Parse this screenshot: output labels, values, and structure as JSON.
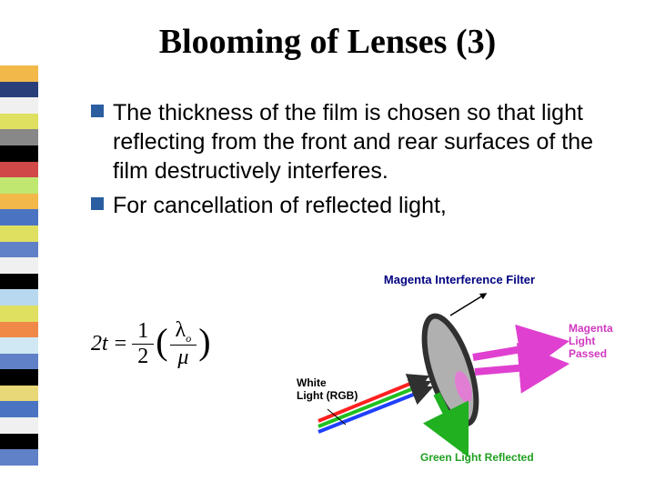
{
  "title": "Blooming of Lenses (3)",
  "bullets": [
    {
      "marker_color": "#2a5ea0",
      "text": "The thickness of the film is chosen so that light reflecting from the front and rear surfaces of the film destructively interferes."
    },
    {
      "marker_color": "#2a5ea0",
      "text": "For cancellation of reflected light,"
    }
  ],
  "equation": {
    "lhs": "2t",
    "fraction1": {
      "num": "1",
      "den": "2"
    },
    "fraction2": {
      "num": "λ",
      "num_sub": "o",
      "den": "μ"
    }
  },
  "diagram": {
    "title": "Magenta Interference Filter",
    "title_color": "#000080",
    "label_white": "White\nLight (RGB)",
    "label_magenta": "Magenta\nLight\nPassed",
    "label_green": "Green Light Reflected",
    "ellipse": {
      "fill": "#b0b0b0",
      "stroke": "#303030",
      "stroke_width": 6
    },
    "arrow_white_colors": [
      "#ff2020",
      "#20c020",
      "#2040ff"
    ],
    "arrow_magenta_color": "#e040d0",
    "arrow_green_color": "#20b020",
    "background": "#ffffff"
  },
  "sidebar_stripes": [
    "#f2b84a",
    "#2a3e7a",
    "#f0f0f0",
    "#e0e060",
    "#888888",
    "#000000",
    "#d04848",
    "#c0e870",
    "#f2b84a",
    "#4a74c2",
    "#e0e060",
    "#6080c8",
    "#f0f0f0",
    "#000000",
    "#b8d8f0",
    "#e0e060",
    "#f08848",
    "#d0e8f4",
    "#6080c8",
    "#000000",
    "#e8d878",
    "#4a74c2",
    "#f0f0f0",
    "#000000",
    "#6080c8"
  ]
}
